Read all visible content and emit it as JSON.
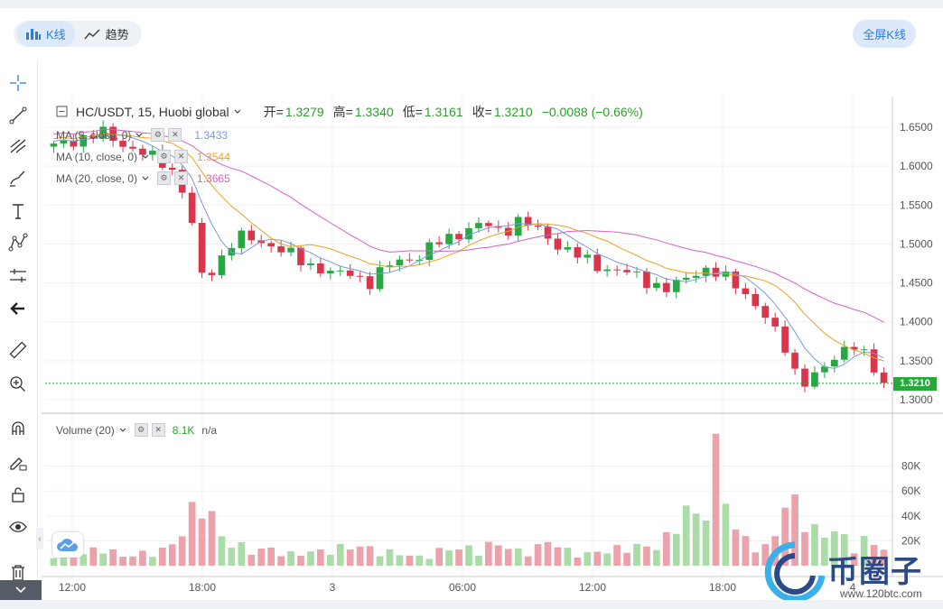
{
  "header": {
    "tabs": [
      {
        "label": "K线",
        "icon": "bar-chart-icon",
        "active": true
      },
      {
        "label": "趋势",
        "icon": "trend-line-icon",
        "active": false
      }
    ],
    "fullscreen_label": "全屏K线"
  },
  "toolbar": {
    "tools": [
      "crosshair-icon",
      "trend-line-tool-icon",
      "fib-tool-icon",
      "brush-icon",
      "text-icon",
      "pattern-icon",
      "measure-icon",
      "back-arrow-icon",
      "ruler-icon",
      "zoom-in-icon",
      "magnet-icon",
      "lock-pencil-icon",
      "unlock-icon",
      "eye-icon",
      "trash-icon"
    ]
  },
  "symbol": {
    "title": "HC/USDT, 15, Huobi global",
    "open_label": "开=",
    "open": "1.3279",
    "high_label": "高=",
    "high": "1.3340",
    "low_label": "低=",
    "low": "1.3161",
    "close_label": "收=",
    "close": "1.3210",
    "change": "−0.0088 (−0.66%)"
  },
  "indicators": [
    {
      "label": "MA (5, close, 0)",
      "value": "1.3433",
      "color": "#7a9ad8"
    },
    {
      "label": "MA (10, close, 0)",
      "value": "1.3544",
      "color": "#f0a020"
    },
    {
      "label": "MA (20, close, 0)",
      "value": "1.3665",
      "color": "#d860c8"
    }
  ],
  "volume_legend": {
    "label": "Volume (20)",
    "value": "8.1K",
    "extra": "n/a"
  },
  "current_price_tag": "1.3210",
  "watermark": {
    "name": "币圈子",
    "url": "www.120btc.com"
  },
  "chart_data": {
    "type": "candlestick",
    "x_ticks": [
      "12:00",
      "18:00",
      "3",
      "06:00",
      "12:00",
      "18:00",
      "4"
    ],
    "y_ticks": [
      "1.6500",
      "1.6000",
      "1.5500",
      "1.5000",
      "1.4500",
      "1.4000",
      "1.3500",
      "1.3000"
    ],
    "volume_ticks": [
      "80K",
      "60K",
      "40K",
      "20K"
    ],
    "colors": {
      "up": "#27a844",
      "down": "#d9364b",
      "up_vol": "#a9dca7",
      "down_vol": "#eba2aa"
    },
    "close_path": [
      1.625,
      1.632,
      1.638,
      1.642,
      1.63,
      1.62,
      1.61,
      1.6,
      1.56,
      1.45,
      1.48,
      1.51,
      1.505,
      1.5,
      1.49,
      1.475,
      1.47,
      1.46,
      1.462,
      1.45,
      1.47,
      1.48,
      1.485,
      1.5,
      1.51,
      1.52,
      1.525,
      1.515,
      1.53,
      1.52,
      1.505,
      1.49,
      1.48,
      1.47,
      1.465,
      1.46,
      1.45,
      1.44,
      1.455,
      1.47,
      1.46,
      1.45,
      1.43,
      1.4,
      1.37,
      1.32,
      1.33,
      1.355,
      1.375,
      1.35,
      1.321
    ],
    "volume_path": [
      10,
      12,
      8,
      15,
      6,
      8,
      10,
      12,
      30,
      50,
      20,
      15,
      10,
      12,
      8,
      9,
      10,
      12,
      14,
      12,
      10,
      8,
      6,
      10,
      12,
      12,
      14,
      15,
      10,
      12,
      18,
      10,
      8,
      10,
      12,
      14,
      12,
      20,
      40,
      30,
      82,
      25,
      15,
      12,
      40,
      45,
      20,
      25,
      15,
      18,
      12
    ]
  }
}
